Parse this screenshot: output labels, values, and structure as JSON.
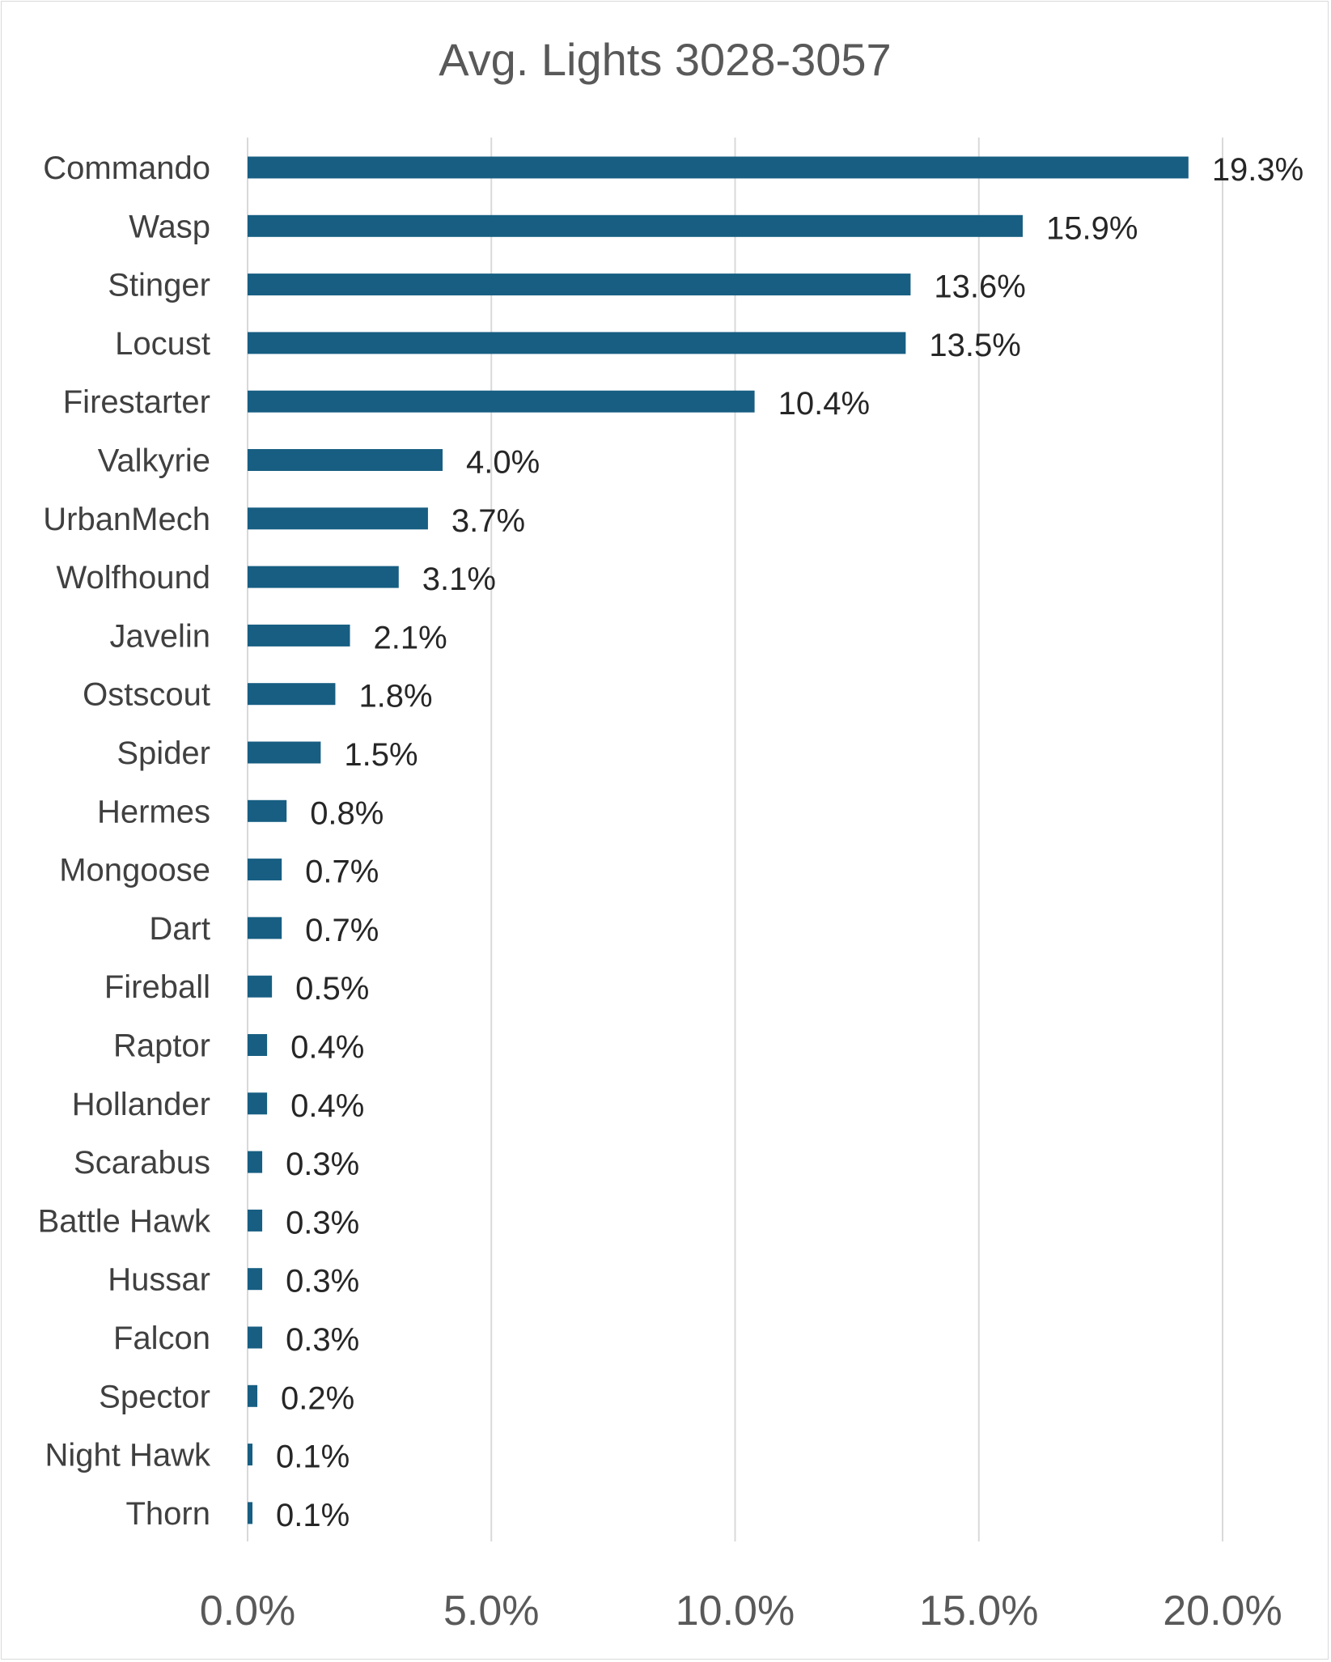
{
  "chart_data": {
    "type": "bar",
    "orientation": "horizontal",
    "title": "Avg. Lights 3028-3057",
    "xlabel": "",
    "ylabel": "",
    "categories": [
      "Commando",
      "Wasp",
      "Stinger",
      "Locust",
      "Firestarter",
      "Valkyrie",
      "UrbanMech",
      "Wolfhound",
      "Javelin",
      "Ostscout",
      "Spider",
      "Hermes",
      "Mongoose",
      "Dart",
      "Fireball",
      "Raptor",
      "Hollander",
      "Scarabus",
      "Battle Hawk",
      "Hussar",
      "Falcon",
      "Spector",
      "Night Hawk",
      "Thorn"
    ],
    "values": [
      19.3,
      15.9,
      13.6,
      13.5,
      10.4,
      4.0,
      3.7,
      3.1,
      2.1,
      1.8,
      1.5,
      0.8,
      0.7,
      0.7,
      0.5,
      0.4,
      0.4,
      0.3,
      0.3,
      0.3,
      0.3,
      0.2,
      0.1,
      0.1
    ],
    "data_labels": [
      "19.3%",
      "15.9%",
      "13.6%",
      "13.5%",
      "10.4%",
      "4.0%",
      "3.7%",
      "3.1%",
      "2.1%",
      "1.8%",
      "1.5%",
      "0.8%",
      "0.7%",
      "0.7%",
      "0.5%",
      "0.4%",
      "0.4%",
      "0.3%",
      "0.3%",
      "0.3%",
      "0.3%",
      "0.2%",
      "0.1%",
      "0.1%"
    ],
    "xlim": [
      0,
      20
    ],
    "xticks": [
      0,
      5,
      10,
      15,
      20
    ],
    "xtick_labels": [
      "0.0%",
      "5.0%",
      "10.0%",
      "15.0%",
      "20.0%"
    ],
    "grid": "vertical",
    "legend": "none",
    "bar_color": "#175e82"
  }
}
